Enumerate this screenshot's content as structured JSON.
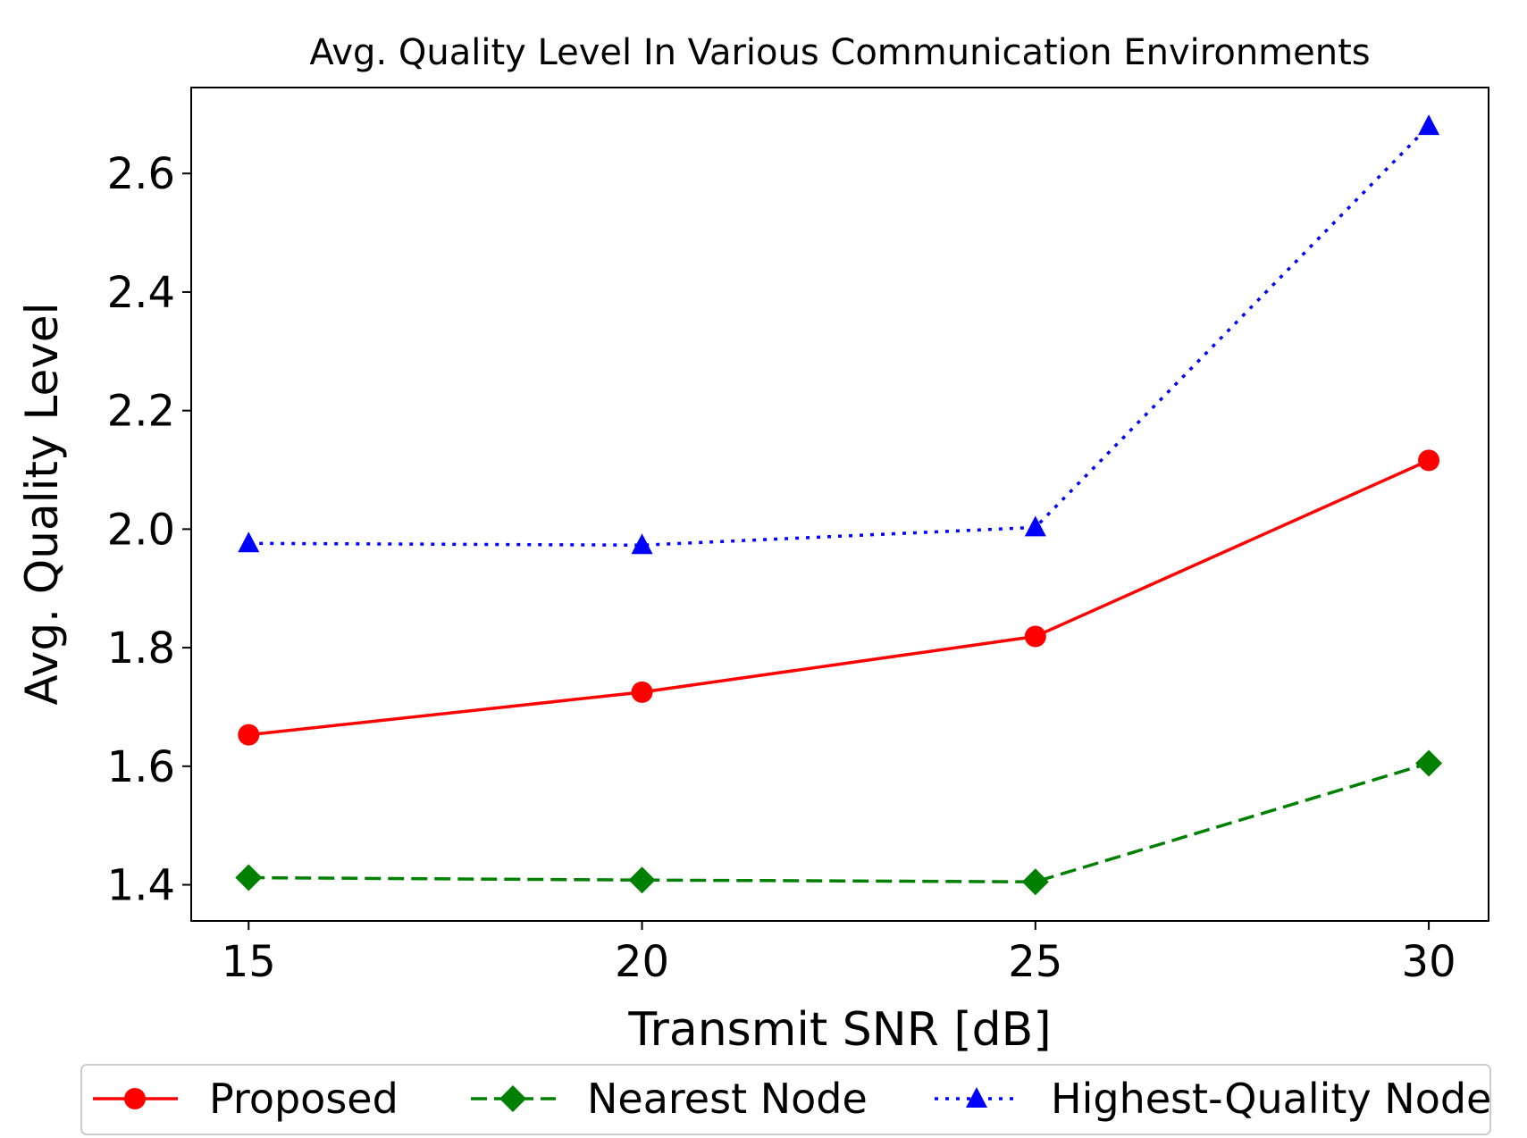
{
  "chart_data": {
    "type": "line",
    "title": "Avg. Quality Level In Various Communication Environments",
    "xlabel": "Transmit SNR [dB]",
    "ylabel": "Avg. Quality Level",
    "x": [
      15,
      20,
      25,
      30
    ],
    "xticks": [
      "15",
      "20",
      "25",
      "30"
    ],
    "yticks": [
      "1.4",
      "1.6",
      "1.8",
      "2.0",
      "2.2",
      "2.4",
      "2.6"
    ],
    "ytick_values": [
      1.4,
      1.6,
      1.8,
      2.0,
      2.2,
      2.4,
      2.6
    ],
    "xlim": [
      14.27,
      30.76
    ],
    "ylim": [
      1.339,
      2.745
    ],
    "grid": false,
    "legend_position": "bottom-outside",
    "series": [
      {
        "name": "Proposed",
        "values": [
          1.653,
          1.725,
          1.819,
          2.116
        ],
        "color": "#ff0000",
        "marker": "circle",
        "dash": "solid"
      },
      {
        "name": "Nearest Node",
        "values": [
          1.412,
          1.408,
          1.405,
          1.605
        ],
        "color": "#008000",
        "marker": "diamond",
        "dash": "dashed"
      },
      {
        "name": "Highest-Quality Node",
        "values": [
          1.976,
          1.973,
          2.003,
          2.68
        ],
        "color": "#0000ff",
        "marker": "triangle",
        "dash": "dotted"
      }
    ]
  }
}
